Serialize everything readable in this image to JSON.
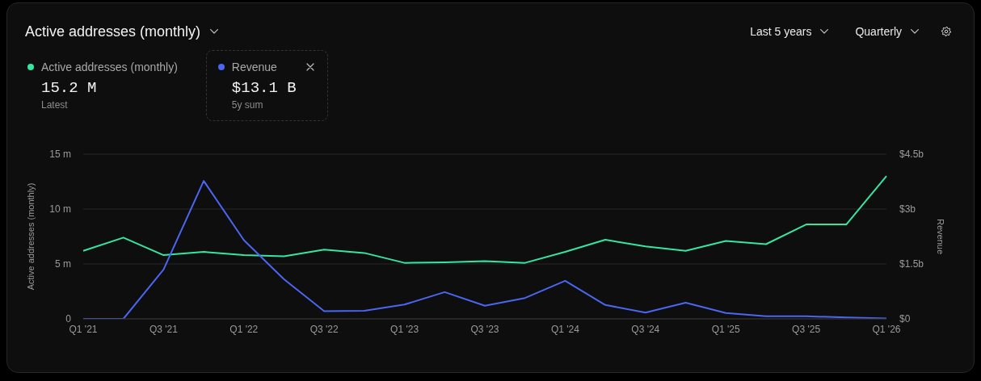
{
  "chart_data": {
    "type": "line",
    "title": "Active addresses (monthly)",
    "categories": [
      "Q1 '21",
      null,
      "Q3 '21",
      null,
      "Q1 '22",
      null,
      "Q3 '22",
      null,
      "Q1 '23",
      null,
      "Q3 '23",
      null,
      "Q1 '24",
      null,
      "Q3 '24",
      null,
      "Q1 '25",
      null,
      "Q3 '25",
      null,
      "Q1 '26"
    ],
    "series": [
      {
        "name": "Active addresses (monthly)",
        "color": "#35e6a1",
        "values": [
          6.2,
          7.4,
          5.8,
          6.1,
          5.8,
          5.7,
          6.3,
          6.0,
          5.1,
          5.15,
          5.25,
          5.1,
          6.1,
          7.2,
          6.6,
          6.2,
          7.1,
          6.8,
          8.6,
          8.6,
          13.0
        ]
      },
      {
        "name": "Revenue",
        "color": "#4b66f0",
        "axis": "y2",
        "values": [
          0,
          0,
          1.35,
          3.77,
          2.15,
          1.08,
          0.21,
          0.22,
          0.39,
          0.73,
          0.36,
          0.57,
          1.04,
          0.38,
          0.17,
          0.44,
          0.16,
          0.07,
          0.07,
          0.04,
          0.01
        ]
      }
    ],
    "ylabel": "Active addresses (monthly)",
    "y2label": "Revenue",
    "ylim": [
      0,
      15
    ],
    "yticks": [
      0,
      {
        "value": 5,
        "label": "5 m"
      },
      {
        "value": 10,
        "label": "10 m"
      },
      {
        "value": 15,
        "label": "15 m"
      }
    ],
    "y2lim": [
      0,
      4.5
    ],
    "y2ticks": [
      {
        "value": 0,
        "label": "$0"
      },
      {
        "value": 1.5,
        "label": "$1.5b"
      },
      {
        "value": 3,
        "label": "$3b"
      },
      {
        "value": 4.5,
        "label": "$4.5b"
      }
    ],
    "grid": "y",
    "legend": "top left",
    "annotations": [
      "Last 5 years",
      "Quarterly",
      "15.2 M",
      "Latest",
      "$13.1 B",
      "5y sum"
    ]
  }
}
